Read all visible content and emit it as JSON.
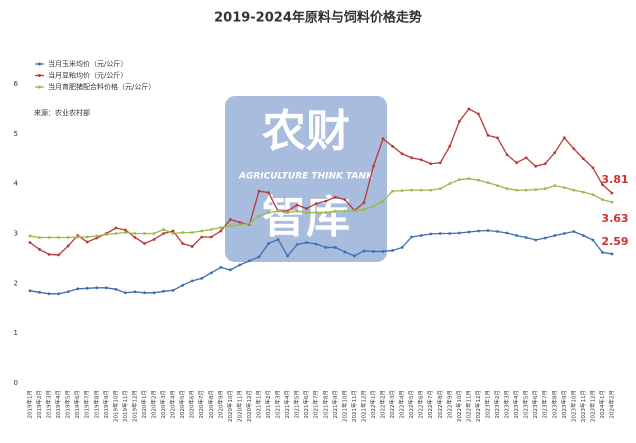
{
  "chart_data": {
    "type": "line",
    "title": "2019-2024年原料与饲料价格走势",
    "source": "来源：农业农村部",
    "watermark": {
      "lines": [
        "农财",
        "智库"
      ],
      "subtitle": "AGRICULTURE THINK TANK"
    },
    "categories": [
      "2019年1月",
      "2019年2月",
      "2019年3月",
      "2019年4月",
      "2019年5月",
      "2019年6月",
      "2019年7月",
      "2019年8月",
      "2019年9月",
      "2019年10月",
      "2019年11月",
      "2019年12月",
      "2020年1月",
      "2020年2月",
      "2020年3月",
      "2020年4月",
      "2020年5月",
      "2020年6月",
      "2020年7月",
      "2020年8月",
      "2020年9月",
      "2020年10月",
      "2020年11月",
      "2020年12月",
      "2021年1月",
      "2021年2月",
      "2021年3月",
      "2021年4月",
      "2021年5月",
      "2021年6月",
      "2021年7月",
      "2021年8月",
      "2021年9月",
      "2021年10月",
      "2021年11月",
      "2021年12月",
      "2022年1月",
      "2022年2月",
      "2022年3月",
      "2022年4月",
      "2022年5月",
      "2022年6月",
      "2022年7月",
      "2022年8月",
      "2022年9月",
      "2022年10月",
      "2022年11月",
      "2022年12月",
      "2023年1月",
      "2023年2月",
      "2023年3月",
      "2023年4月",
      "2023年5月",
      "2023年6月",
      "2023年7月",
      "2023年8月",
      "2023年9月",
      "2023年10月",
      "2023年11月",
      "2023年12月",
      "2024年1月",
      "2024年2月"
    ],
    "series": [
      {
        "name": "当月玉米均价（元/公斤）",
        "color": "#3d6fb0",
        "values": [
          1.85,
          1.82,
          1.79,
          1.79,
          1.83,
          1.89,
          1.9,
          1.91,
          1.91,
          1.88,
          1.81,
          1.83,
          1.81,
          1.81,
          1.84,
          1.86,
          1.96,
          2.05,
          2.1,
          2.21,
          2.32,
          2.27,
          2.37,
          2.45,
          2.53,
          2.8,
          2.88,
          2.55,
          2.78,
          2.82,
          2.79,
          2.72,
          2.72,
          2.63,
          2.55,
          2.65,
          2.64,
          2.64,
          2.66,
          2.72,
          2.93,
          2.96,
          2.99,
          3.0,
          3.0,
          3.01,
          3.03,
          3.05,
          3.06,
          3.04,
          3.01,
          2.96,
          2.92,
          2.87,
          2.91,
          2.96,
          3.0,
          3.04,
          2.96,
          2.87,
          2.62,
          2.59
        ]
      },
      {
        "name": "当月豆粕均价（元/公斤）",
        "color": "#b83a3a",
        "values": [
          2.82,
          2.68,
          2.58,
          2.57,
          2.75,
          2.96,
          2.83,
          2.91,
          3.0,
          3.11,
          3.07,
          2.92,
          2.8,
          2.88,
          3.0,
          3.05,
          2.8,
          2.74,
          2.93,
          2.93,
          3.05,
          3.28,
          3.22,
          3.18,
          3.85,
          3.82,
          3.45,
          3.45,
          3.57,
          3.5,
          3.6,
          3.65,
          3.73,
          3.68,
          3.46,
          3.62,
          4.35,
          4.9,
          4.75,
          4.6,
          4.52,
          4.48,
          4.4,
          4.42,
          4.75,
          5.25,
          5.5,
          5.4,
          4.97,
          4.92,
          4.58,
          4.42,
          4.52,
          4.35,
          4.4,
          4.62,
          4.92,
          4.7,
          4.5,
          4.32,
          3.98,
          3.81
        ]
      },
      {
        "name": "当月育肥猪配合料价格（元/公斤）",
        "color": "#9bba4a",
        "values": [
          2.95,
          2.92,
          2.92,
          2.92,
          2.92,
          2.93,
          2.93,
          2.95,
          2.98,
          3.0,
          3.02,
          3.0,
          3.0,
          3.0,
          3.08,
          3.0,
          3.02,
          3.02,
          3.05,
          3.08,
          3.12,
          3.15,
          3.18,
          3.2,
          3.35,
          3.42,
          3.45,
          3.42,
          3.45,
          3.42,
          3.42,
          3.42,
          3.45,
          3.45,
          3.45,
          3.48,
          3.55,
          3.65,
          3.85,
          3.86,
          3.87,
          3.87,
          3.87,
          3.9,
          4.0,
          4.08,
          4.1,
          4.07,
          4.02,
          3.96,
          3.9,
          3.87,
          3.87,
          3.88,
          3.9,
          3.96,
          3.92,
          3.87,
          3.83,
          3.78,
          3.68,
          3.63
        ]
      }
    ],
    "annotations": [
      {
        "text": "3.81"
      },
      {
        "text": "3.63"
      },
      {
        "text": "2.59"
      }
    ],
    "ylim": [
      0,
      6
    ],
    "yticks": [
      0,
      1,
      2,
      3,
      4,
      5,
      6
    ],
    "grid": false
  }
}
